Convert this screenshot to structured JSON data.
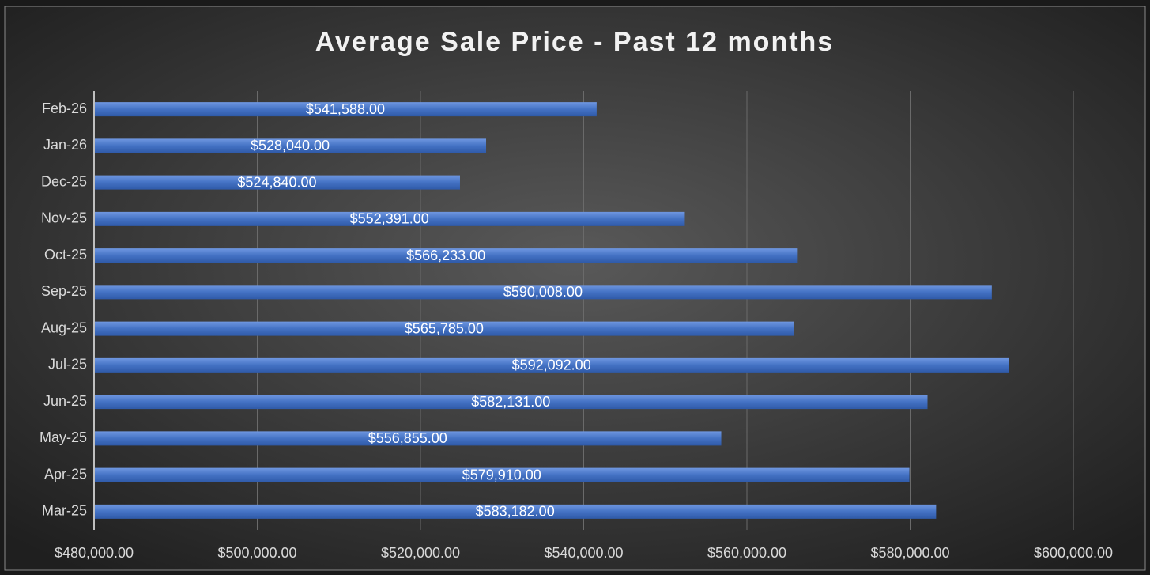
{
  "chart_data": {
    "type": "bar",
    "orientation": "horizontal",
    "title": "Average Sale Price - Past 12 months",
    "categories": [
      "Mar-25",
      "Apr-25",
      "May-25",
      "Jun-25",
      "Jul-25",
      "Aug-25",
      "Sep-25",
      "Oct-25",
      "Nov-25",
      "Dec-25",
      "Jan-26",
      "Feb-26"
    ],
    "values": [
      583182,
      579910,
      556855,
      582131,
      592092,
      565785,
      590008,
      566233,
      552391,
      524840,
      528040,
      541588
    ],
    "value_labels": [
      "$583,182.00",
      "$579,910.00",
      "$556,855.00",
      "$582,131.00",
      "$592,092.00",
      "$565,785.00",
      "$590,008.00",
      "$566,233.00",
      "$552,391.00",
      "$524,840.00",
      "$528,040.00",
      "$541,588.00"
    ],
    "color": "#4472c4",
    "xlim": [
      480000,
      600000
    ],
    "xticks": [
      {
        "value": 480000,
        "label": "$480,000.00"
      },
      {
        "value": 500000,
        "label": "$500,000.00"
      },
      {
        "value": 520000,
        "label": "$520,000.00"
      },
      {
        "value": 540000,
        "label": "$540,000.00"
      },
      {
        "value": 560000,
        "label": "$560,000.00"
      },
      {
        "value": 580000,
        "label": "$580,000.00"
      },
      {
        "value": 600000,
        "label": "$600,000.00"
      }
    ],
    "grid": true
  }
}
